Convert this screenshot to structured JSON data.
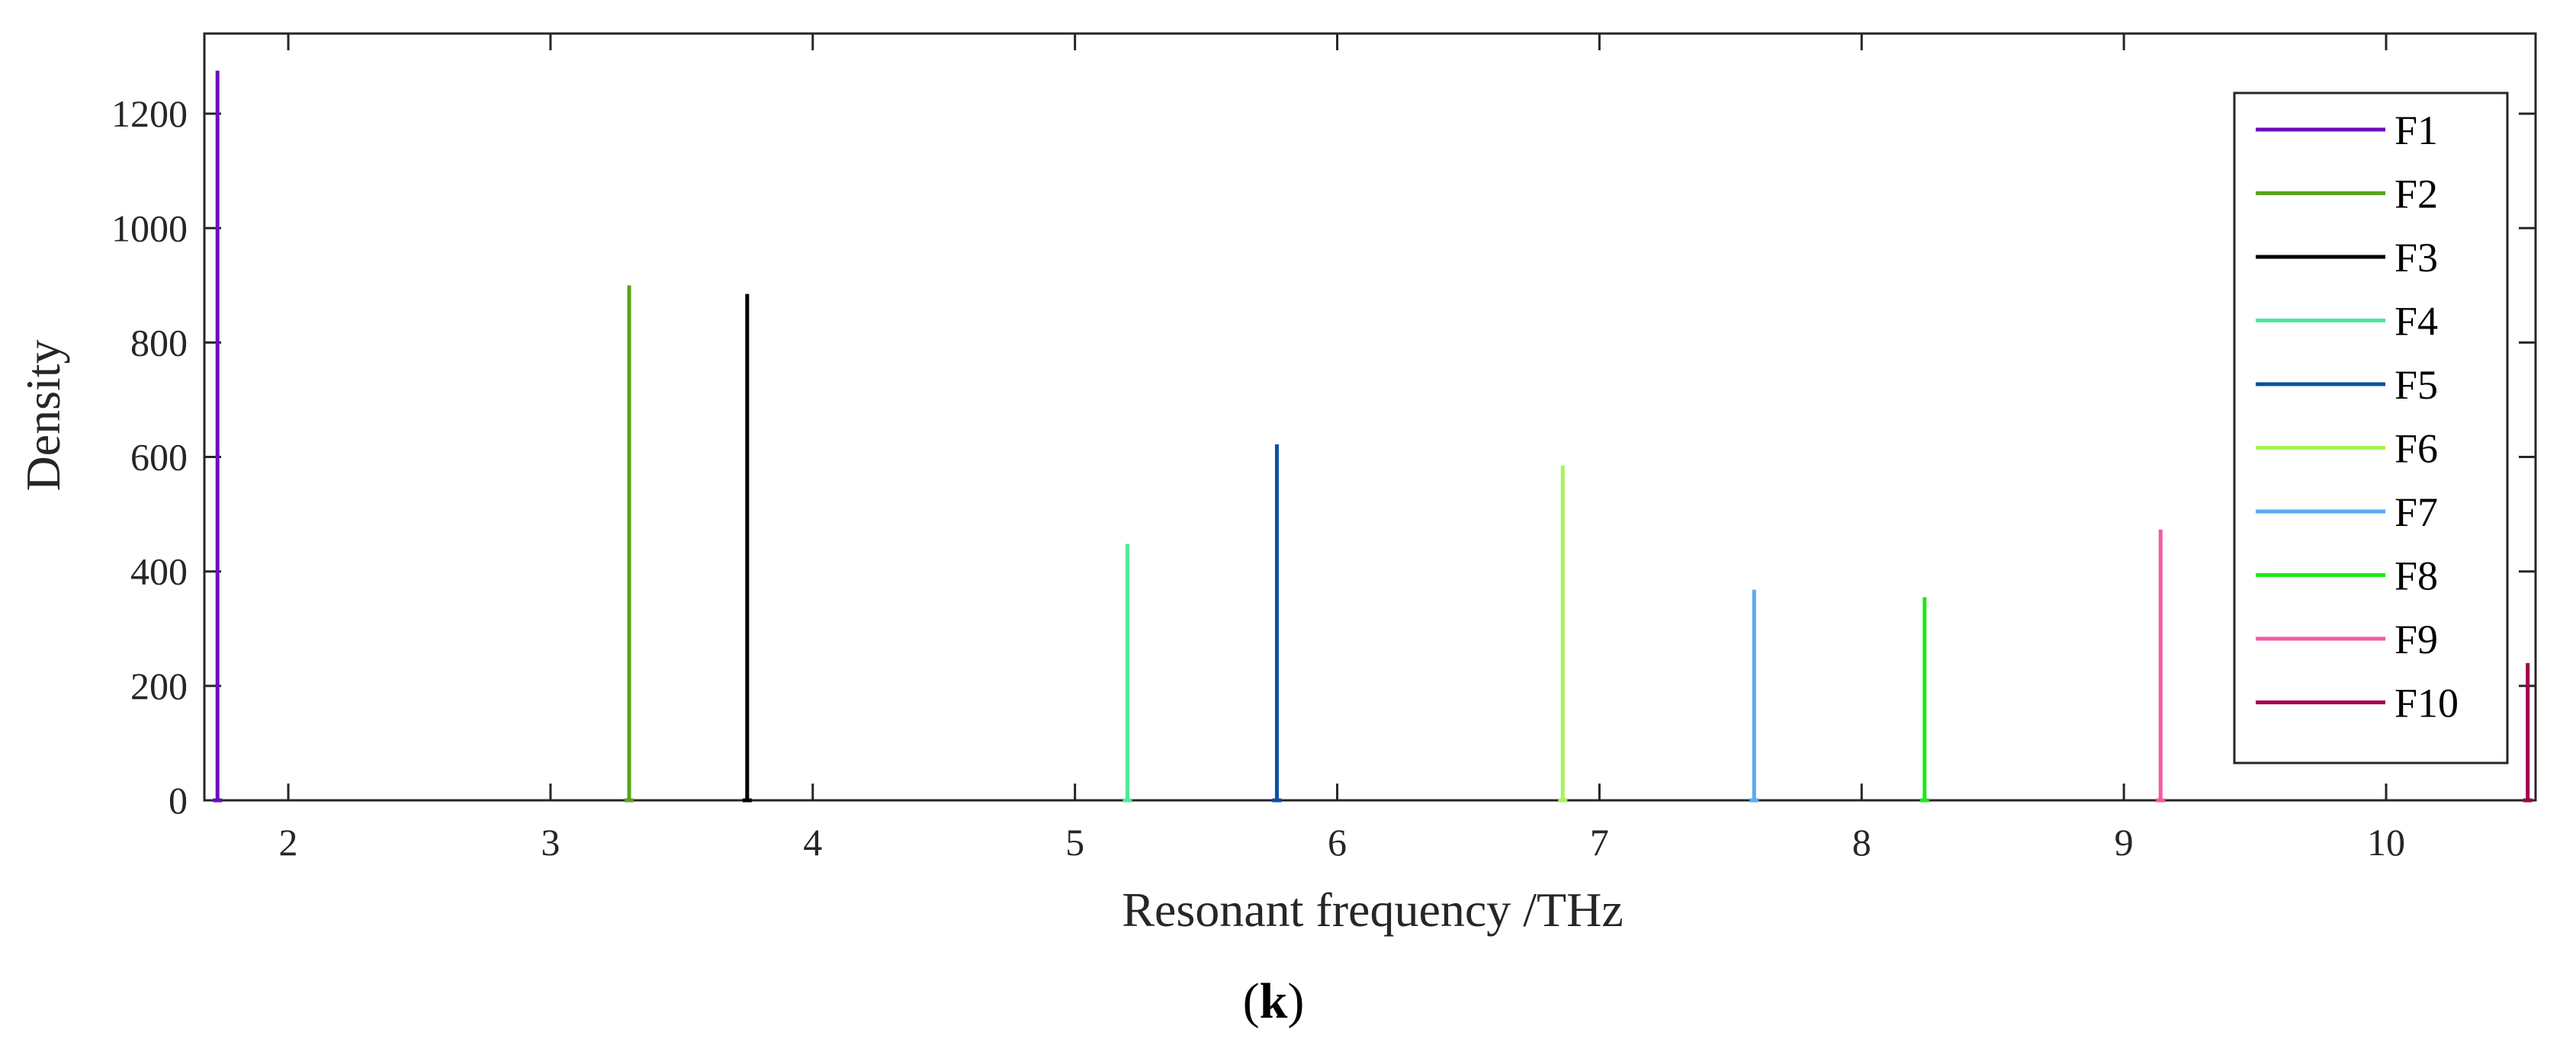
{
  "chart_data": {
    "type": "line",
    "xlabel": "Resonant frequency  /THz",
    "ylabel": "Density",
    "caption_open": "(",
    "caption_letter": "k",
    "caption_close": ")",
    "xlim": [
      1.68,
      10.57
    ],
    "ylim": [
      0,
      1340
    ],
    "xticks": [
      2,
      3,
      4,
      5,
      6,
      7,
      8,
      9,
      10
    ],
    "yticks": [
      0,
      200,
      400,
      600,
      800,
      1000,
      1200
    ],
    "grid": false,
    "legend_position": "right",
    "series": [
      {
        "name": "F1",
        "color": "#6a0dbf",
        "peak_x": 1.73,
        "peak_y": 1275
      },
      {
        "name": "F2",
        "color": "#58a31c",
        "peak_x": 3.3,
        "peak_y": 900
      },
      {
        "name": "F3",
        "color": "#000000",
        "peak_x": 3.75,
        "peak_y": 885
      },
      {
        "name": "F4",
        "color": "#4fe89a",
        "peak_x": 5.2,
        "peak_y": 448
      },
      {
        "name": "F5",
        "color": "#0a4fa3",
        "peak_x": 5.77,
        "peak_y": 622
      },
      {
        "name": "F6",
        "color": "#a7f25a",
        "peak_x": 6.86,
        "peak_y": 585
      },
      {
        "name": "F7",
        "color": "#5aa9f2",
        "peak_x": 7.59,
        "peak_y": 368
      },
      {
        "name": "F8",
        "color": "#1fe81f",
        "peak_x": 8.24,
        "peak_y": 355
      },
      {
        "name": "F9",
        "color": "#f25aa2",
        "peak_x": 9.14,
        "peak_y": 473
      },
      {
        "name": "F10",
        "color": "#a3004f",
        "peak_x": 10.54,
        "peak_y": 240
      }
    ]
  }
}
